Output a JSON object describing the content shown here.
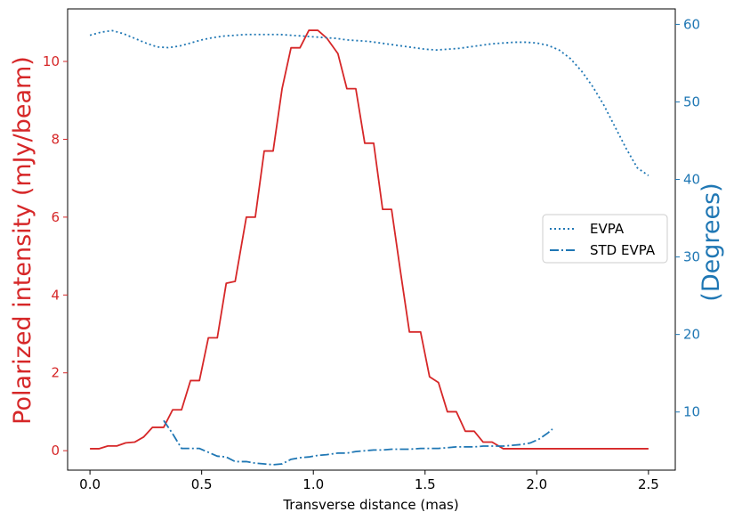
{
  "chart_data": {
    "type": "line",
    "title": "",
    "xlabel": "Transverse distance (mas)",
    "ylabel_left": "Polarized intensity (mJy/beam)",
    "ylabel_right": "(Degrees)",
    "xlim": [
      -0.1,
      2.62
    ],
    "ylim_left": [
      -0.5,
      11.35
    ],
    "ylim_right": [
      2.5,
      62.0
    ],
    "x_ticks": [
      0.0,
      0.5,
      1.0,
      1.5,
      2.0,
      2.5
    ],
    "x_tick_labels": [
      "0.0",
      "0.5",
      "1.0",
      "1.5",
      "2.0",
      "2.5"
    ],
    "yleft_ticks": [
      0,
      2,
      4,
      6,
      8,
      10
    ],
    "yleft_tick_labels": [
      "0",
      "2",
      "4",
      "6",
      "8",
      "10"
    ],
    "yright_ticks": [
      10,
      20,
      30,
      40,
      50,
      60
    ],
    "yright_tick_labels": [
      "10",
      "20",
      "30",
      "40",
      "50",
      "60"
    ],
    "grid": false,
    "legend_position": "center-right",
    "colors": {
      "left_axis": "#d62728",
      "right_axis": "#1f77b4"
    },
    "series_left": {
      "color": "#d62728",
      "style": "solid",
      "x": [
        0.0,
        0.04,
        0.08,
        0.12,
        0.16,
        0.2,
        0.24,
        0.28,
        0.33,
        0.37,
        0.41,
        0.45,
        0.49,
        0.53,
        0.57,
        0.61,
        0.65,
        0.7,
        0.74,
        0.78,
        0.82,
        0.86,
        0.9,
        0.94,
        0.98,
        1.02,
        1.06,
        1.11,
        1.15,
        1.19,
        1.23,
        1.27,
        1.31,
        1.35,
        1.39,
        1.43,
        1.48,
        1.52,
        1.56,
        1.6,
        1.64,
        1.68,
        1.72,
        1.76,
        1.8,
        1.85,
        1.89,
        1.93,
        1.97,
        2.01,
        2.05,
        2.09,
        2.13,
        2.17,
        2.22,
        2.26,
        2.3,
        2.34,
        2.38,
        2.42,
        2.46,
        2.5
      ],
      "y": [
        0.05,
        0.05,
        0.12,
        0.12,
        0.2,
        0.22,
        0.35,
        0.6,
        0.6,
        1.05,
        1.05,
        1.8,
        1.8,
        2.9,
        2.9,
        4.3,
        4.35,
        6.0,
        6.0,
        7.7,
        7.7,
        9.3,
        10.35,
        10.35,
        10.8,
        10.8,
        10.6,
        10.2,
        9.3,
        9.3,
        7.9,
        7.9,
        6.2,
        6.2,
        4.6,
        3.05,
        3.05,
        1.9,
        1.75,
        1.0,
        1.0,
        0.5,
        0.5,
        0.22,
        0.22,
        0.05,
        0.05,
        0.05,
        0.05,
        0.05,
        0.05,
        0.05,
        0.05,
        0.05,
        0.05,
        0.05,
        0.05,
        0.05,
        0.05,
        0.05,
        0.05,
        0.05
      ]
    },
    "series_right": [
      {
        "name": "EVPA",
        "color": "#1f77b4",
        "style": "dotted",
        "x": [
          0.0,
          0.05,
          0.1,
          0.15,
          0.2,
          0.25,
          0.3,
          0.35,
          0.4,
          0.45,
          0.5,
          0.55,
          0.6,
          0.65,
          0.7,
          0.75,
          0.8,
          0.85,
          0.9,
          0.95,
          1.0,
          1.05,
          1.1,
          1.15,
          1.2,
          1.25,
          1.3,
          1.35,
          1.4,
          1.45,
          1.5,
          1.55,
          1.6,
          1.65,
          1.7,
          1.75,
          1.8,
          1.85,
          1.9,
          1.95,
          2.0,
          2.05,
          2.1,
          2.15,
          2.2,
          2.25,
          2.3,
          2.35,
          2.4,
          2.45,
          2.5
        ],
        "y": [
          58.6,
          59.0,
          59.2,
          58.8,
          58.2,
          57.6,
          57.1,
          57.0,
          57.2,
          57.6,
          58.0,
          58.3,
          58.5,
          58.6,
          58.7,
          58.7,
          58.7,
          58.7,
          58.6,
          58.5,
          58.4,
          58.3,
          58.2,
          58.0,
          57.9,
          57.8,
          57.6,
          57.4,
          57.2,
          57.0,
          56.8,
          56.7,
          56.8,
          56.9,
          57.1,
          57.3,
          57.5,
          57.6,
          57.7,
          57.7,
          57.6,
          57.3,
          56.7,
          55.6,
          54.0,
          52.0,
          49.6,
          46.8,
          44.0,
          41.5,
          40.5
        ]
      },
      {
        "name": "STD EVPA",
        "color": "#1f77b4",
        "style": "dashdot",
        "x": [
          0.33,
          0.37,
          0.41,
          0.45,
          0.49,
          0.53,
          0.57,
          0.61,
          0.65,
          0.7,
          0.74,
          0.78,
          0.82,
          0.86,
          0.9,
          0.94,
          0.98,
          1.02,
          1.06,
          1.11,
          1.15,
          1.19,
          1.23,
          1.27,
          1.31,
          1.35,
          1.39,
          1.43,
          1.48,
          1.52,
          1.56,
          1.6,
          1.64,
          1.68,
          1.72,
          1.76,
          1.8,
          1.85,
          1.89,
          1.93,
          1.97,
          2.01,
          2.05,
          2.07
        ],
        "y": [
          8.9,
          7.2,
          5.3,
          5.3,
          5.3,
          4.8,
          4.3,
          4.2,
          3.6,
          3.6,
          3.4,
          3.3,
          3.2,
          3.3,
          3.9,
          4.1,
          4.2,
          4.4,
          4.5,
          4.7,
          4.7,
          4.9,
          5.0,
          5.1,
          5.1,
          5.2,
          5.2,
          5.2,
          5.3,
          5.3,
          5.3,
          5.4,
          5.5,
          5.5,
          5.5,
          5.6,
          5.6,
          5.6,
          5.7,
          5.8,
          6.0,
          6.5,
          7.3,
          7.8
        ]
      }
    ]
  }
}
